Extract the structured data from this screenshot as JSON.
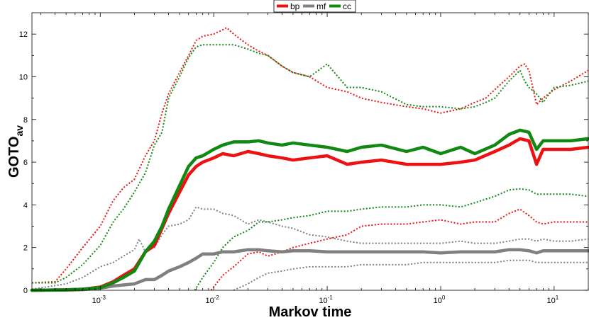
{
  "chart_data": {
    "type": "line",
    "xlabel": "Markov time",
    "ylabel_main": "GOTO",
    "ylabel_sub": "av",
    "x_scale": "log",
    "xlim": [
      0.00025,
      20
    ],
    "ylim": [
      0,
      13
    ],
    "x_ticks": [
      {
        "value": 0.001,
        "base": "10",
        "exp": "-3"
      },
      {
        "value": 0.01,
        "base": "10",
        "exp": "-2"
      },
      {
        "value": 0.1,
        "base": "10",
        "exp": "-1"
      },
      {
        "value": 1,
        "base": "10",
        "exp": "0"
      },
      {
        "value": 10,
        "base": "10",
        "exp": "1"
      }
    ],
    "y_ticks": [
      0,
      2,
      4,
      6,
      8,
      10,
      12
    ],
    "grid": false,
    "legend_position": "top-center",
    "legend": [
      {
        "label": "bp",
        "color": "#ee1111"
      },
      {
        "label": "mf",
        "color": "#808080"
      },
      {
        "label": "cc",
        "color": "#118811"
      }
    ],
    "series": [
      {
        "name": "bp",
        "color": "#ee1111",
        "style": "solid",
        "x": [
          0.00025,
          0.0005,
          0.0007,
          0.001,
          0.0013,
          0.0016,
          0.002,
          0.0025,
          0.003,
          0.0035,
          0.004,
          0.005,
          0.006,
          0.007,
          0.008,
          0.01,
          0.012,
          0.015,
          0.02,
          0.025,
          0.03,
          0.04,
          0.05,
          0.07,
          0.1,
          0.15,
          0.2,
          0.3,
          0.5,
          0.7,
          1,
          1.5,
          2,
          3,
          4,
          5,
          6,
          7,
          8,
          10,
          14,
          20
        ],
        "y": [
          0,
          0.02,
          0.05,
          0.15,
          0.4,
          0.7,
          1.0,
          1.8,
          2.1,
          2.9,
          3.6,
          4.6,
          5.4,
          5.8,
          6.0,
          6.2,
          6.4,
          6.3,
          6.5,
          6.4,
          6.3,
          6.2,
          6.1,
          6.2,
          6.3,
          5.9,
          6.0,
          6.1,
          5.9,
          5.9,
          5.9,
          6.0,
          6.1,
          6.5,
          6.8,
          7.1,
          7.0,
          5.9,
          6.6,
          6.6,
          6.6,
          6.7
        ]
      },
      {
        "name": "bp-upper",
        "color": "#ee1111",
        "style": "dotted",
        "x": [
          0.00025,
          0.0004,
          0.0005,
          0.0007,
          0.001,
          0.0013,
          0.0016,
          0.002,
          0.0025,
          0.003,
          0.0035,
          0.004,
          0.005,
          0.006,
          0.007,
          0.008,
          0.01,
          0.012,
          0.013,
          0.015,
          0.02,
          0.025,
          0.03,
          0.04,
          0.05,
          0.07,
          0.1,
          0.15,
          0.2,
          0.3,
          0.5,
          0.7,
          1,
          1.5,
          2,
          2.5,
          3,
          4,
          5,
          5.5,
          6,
          7,
          8,
          10,
          14,
          20
        ],
        "y": [
          0.35,
          0.4,
          1.0,
          2.0,
          3.0,
          4.2,
          4.8,
          5.2,
          6.3,
          7.0,
          8.3,
          9.2,
          10.2,
          11.0,
          11.7,
          11.9,
          12.0,
          12.2,
          12.3,
          12.0,
          11.5,
          11.2,
          11.0,
          10.5,
          10.2,
          10.0,
          9.5,
          9.3,
          9.0,
          8.8,
          8.6,
          8.5,
          8.3,
          8.5,
          8.8,
          9.0,
          9.4,
          10.0,
          10.5,
          10.6,
          10.3,
          8.7,
          9.0,
          9.4,
          9.8,
          10.3
        ]
      },
      {
        "name": "bp-lower",
        "color": "#ee1111",
        "style": "dotted",
        "x": [
          0.0095,
          0.012,
          0.015,
          0.02,
          0.025,
          0.03,
          0.04,
          0.05,
          0.07,
          0.1,
          0.15,
          0.2,
          0.3,
          0.5,
          0.7,
          1,
          1.5,
          2,
          3,
          4,
          5,
          6,
          7,
          8,
          10,
          14,
          20
        ],
        "y": [
          0,
          0.7,
          1.1,
          1.7,
          1.8,
          1.6,
          1.8,
          2.0,
          2.2,
          2.4,
          2.6,
          3.0,
          3.1,
          3.1,
          3.2,
          3.3,
          3.1,
          3.2,
          3.2,
          3.6,
          3.8,
          3.5,
          3.2,
          3.1,
          3.2,
          3.2,
          3.2
        ]
      },
      {
        "name": "mf",
        "color": "#808080",
        "style": "solid",
        "x": [
          0.00025,
          0.0005,
          0.0007,
          0.001,
          0.0013,
          0.0016,
          0.002,
          0.0025,
          0.003,
          0.0035,
          0.004,
          0.005,
          0.006,
          0.007,
          0.008,
          0.01,
          0.012,
          0.015,
          0.02,
          0.025,
          0.03,
          0.04,
          0.05,
          0.07,
          0.1,
          0.15,
          0.2,
          0.3,
          0.5,
          0.7,
          1,
          1.5,
          2,
          3,
          4,
          5,
          6,
          7,
          8,
          10,
          14,
          20
        ],
        "y": [
          0,
          0.01,
          0.03,
          0.1,
          0.2,
          0.25,
          0.3,
          0.5,
          0.5,
          0.7,
          0.9,
          1.1,
          1.3,
          1.5,
          1.7,
          1.7,
          1.8,
          1.8,
          1.9,
          1.9,
          1.85,
          1.8,
          1.85,
          1.85,
          1.8,
          1.8,
          1.8,
          1.8,
          1.8,
          1.8,
          1.75,
          1.8,
          1.8,
          1.8,
          1.9,
          1.9,
          1.85,
          1.75,
          1.85,
          1.85,
          1.85,
          1.85
        ]
      },
      {
        "name": "mf-upper",
        "color": "#808080",
        "style": "dotted",
        "x": [
          0.00025,
          0.0005,
          0.0007,
          0.001,
          0.0013,
          0.0016,
          0.002,
          0.0022,
          0.0025,
          0.003,
          0.0035,
          0.004,
          0.005,
          0.006,
          0.007,
          0.008,
          0.01,
          0.012,
          0.015,
          0.02,
          0.025,
          0.03,
          0.04,
          0.05,
          0.07,
          0.1,
          0.15,
          0.2,
          0.3,
          0.5,
          0.7,
          1,
          1.5,
          2,
          3,
          4,
          5,
          6,
          7,
          8,
          10,
          14,
          20
        ],
        "y": [
          0.05,
          0.3,
          0.6,
          1.1,
          1.3,
          1.6,
          1.9,
          2.4,
          1.8,
          2.0,
          2.6,
          3.0,
          3.1,
          3.3,
          3.9,
          3.8,
          3.8,
          3.6,
          3.5,
          3.1,
          3.3,
          3.2,
          3.0,
          2.9,
          2.6,
          2.5,
          2.3,
          2.2,
          2.2,
          2.2,
          2.2,
          2.2,
          2.3,
          2.2,
          2.2,
          2.3,
          2.4,
          2.4,
          2.3,
          2.4,
          2.3,
          2.3,
          2.4
        ]
      },
      {
        "name": "mf-lower",
        "color": "#808080",
        "style": "dotted",
        "x": [
          0.015,
          0.02,
          0.025,
          0.03,
          0.04,
          0.05,
          0.07,
          0.1,
          0.15,
          0.2,
          0.3,
          0.5,
          0.7,
          1,
          1.5,
          2,
          3,
          4,
          5,
          6,
          7,
          8,
          10,
          14,
          20
        ],
        "y": [
          0,
          0.3,
          0.6,
          0.8,
          0.9,
          1.0,
          1.1,
          1.1,
          1.1,
          1.2,
          1.2,
          1.2,
          1.3,
          1.3,
          1.3,
          1.3,
          1.3,
          1.4,
          1.4,
          1.4,
          1.3,
          1.3,
          1.3,
          1.3,
          1.3
        ]
      },
      {
        "name": "cc",
        "color": "#118811",
        "style": "solid",
        "x": [
          0.00025,
          0.0005,
          0.0007,
          0.001,
          0.0013,
          0.0016,
          0.002,
          0.0025,
          0.003,
          0.0035,
          0.004,
          0.005,
          0.006,
          0.007,
          0.008,
          0.01,
          0.012,
          0.015,
          0.02,
          0.025,
          0.03,
          0.04,
          0.05,
          0.07,
          0.1,
          0.15,
          0.2,
          0.3,
          0.5,
          0.7,
          1,
          1.5,
          2,
          3,
          4,
          5,
          6,
          7,
          8,
          10,
          14,
          20
        ],
        "y": [
          0,
          0.02,
          0.05,
          0.12,
          0.35,
          0.6,
          0.9,
          1.8,
          2.3,
          3.0,
          3.8,
          4.9,
          5.8,
          6.2,
          6.3,
          6.6,
          6.8,
          6.95,
          6.95,
          7.0,
          6.9,
          6.8,
          6.9,
          6.8,
          6.7,
          6.5,
          6.7,
          6.8,
          6.5,
          6.7,
          6.4,
          6.7,
          6.4,
          6.8,
          7.3,
          7.5,
          7.4,
          6.6,
          7.0,
          7.0,
          7.0,
          7.1
        ]
      },
      {
        "name": "cc-upper",
        "color": "#118811",
        "style": "dotted",
        "x": [
          0.00025,
          0.0004,
          0.0005,
          0.0007,
          0.001,
          0.0013,
          0.0016,
          0.002,
          0.0025,
          0.003,
          0.0035,
          0.004,
          0.005,
          0.006,
          0.007,
          0.008,
          0.01,
          0.012,
          0.015,
          0.02,
          0.025,
          0.03,
          0.04,
          0.05,
          0.07,
          0.1,
          0.15,
          0.2,
          0.3,
          0.5,
          0.7,
          1,
          1.5,
          2,
          2.5,
          3,
          4,
          5,
          5.5,
          6,
          7,
          8,
          10,
          14,
          20
        ],
        "y": [
          0.35,
          0.35,
          0.6,
          1.2,
          2.1,
          3.2,
          3.8,
          4.6,
          5.5,
          6.8,
          7.4,
          9.0,
          10.0,
          10.9,
          11.4,
          11.5,
          11.5,
          11.5,
          11.5,
          11.3,
          11.1,
          11.0,
          10.5,
          10.2,
          10.0,
          10.6,
          9.5,
          9.5,
          9.3,
          8.7,
          8.6,
          8.6,
          8.5,
          8.6,
          8.8,
          9.0,
          9.8,
          10.3,
          9.8,
          9.5,
          9.2,
          8.8,
          9.5,
          9.6,
          9.8
        ]
      },
      {
        "name": "cc-lower",
        "color": "#118811",
        "style": "dotted",
        "x": [
          0.0068,
          0.008,
          0.01,
          0.012,
          0.015,
          0.02,
          0.025,
          0.03,
          0.04,
          0.05,
          0.07,
          0.1,
          0.15,
          0.2,
          0.3,
          0.5,
          0.7,
          1,
          1.5,
          2,
          3,
          4,
          5,
          6,
          7,
          8,
          10,
          14,
          20
        ],
        "y": [
          0,
          0.6,
          1.3,
          2.0,
          2.5,
          2.8,
          3.2,
          3.2,
          3.3,
          3.4,
          3.5,
          3.7,
          3.7,
          3.8,
          3.9,
          3.9,
          4.0,
          4.0,
          3.9,
          4.1,
          4.4,
          4.7,
          4.75,
          4.7,
          4.5,
          4.5,
          4.5,
          4.5,
          4.4
        ]
      }
    ]
  }
}
